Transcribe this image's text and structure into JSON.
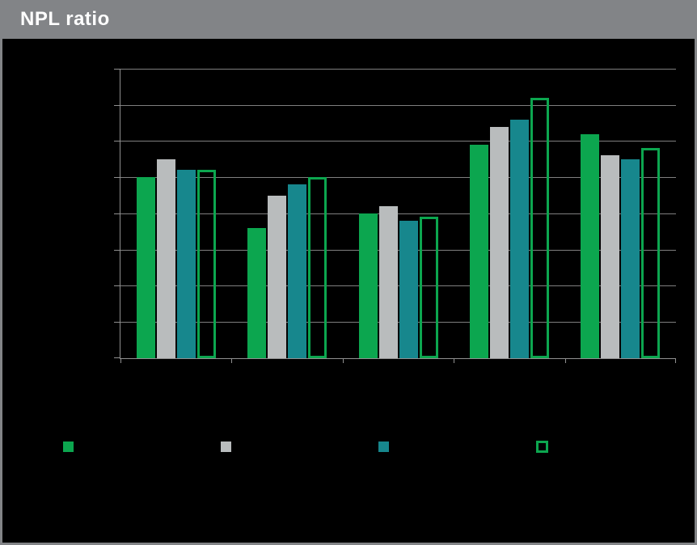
{
  "title": "NPL ratio",
  "colors": {
    "frame_gray": "#828487",
    "background": "#000000",
    "title_text": "#ffffff",
    "gridline": "#7f7f7f",
    "axis": "#909090",
    "green": "#0ca64f",
    "silver": "#b9bcbd",
    "teal": "#17878d"
  },
  "chart_data": {
    "type": "bar",
    "title": "NPL ratio",
    "categories": [
      "",
      "",
      "",
      "",
      ""
    ],
    "series": [
      {
        "name": "green",
        "color": "#0ca64f",
        "fill": "solid",
        "values": [
          5.0,
          3.6,
          4.0,
          5.9,
          6.2
        ]
      },
      {
        "name": "silver",
        "color": "#b9bcbd",
        "fill": "solid",
        "values": [
          5.5,
          4.5,
          4.2,
          6.4,
          5.6
        ]
      },
      {
        "name": "teal",
        "color": "#17878d",
        "fill": "solid",
        "values": [
          5.2,
          4.8,
          3.8,
          6.6,
          5.5
        ]
      },
      {
        "name": "green-outline",
        "color": "#0ca64f",
        "fill": "outline",
        "values": [
          5.2,
          5.0,
          3.9,
          7.2,
          5.8
        ]
      }
    ],
    "ylim": [
      0,
      8
    ],
    "ytick_step": 1,
    "grid": true,
    "legend_position": "bottom"
  }
}
